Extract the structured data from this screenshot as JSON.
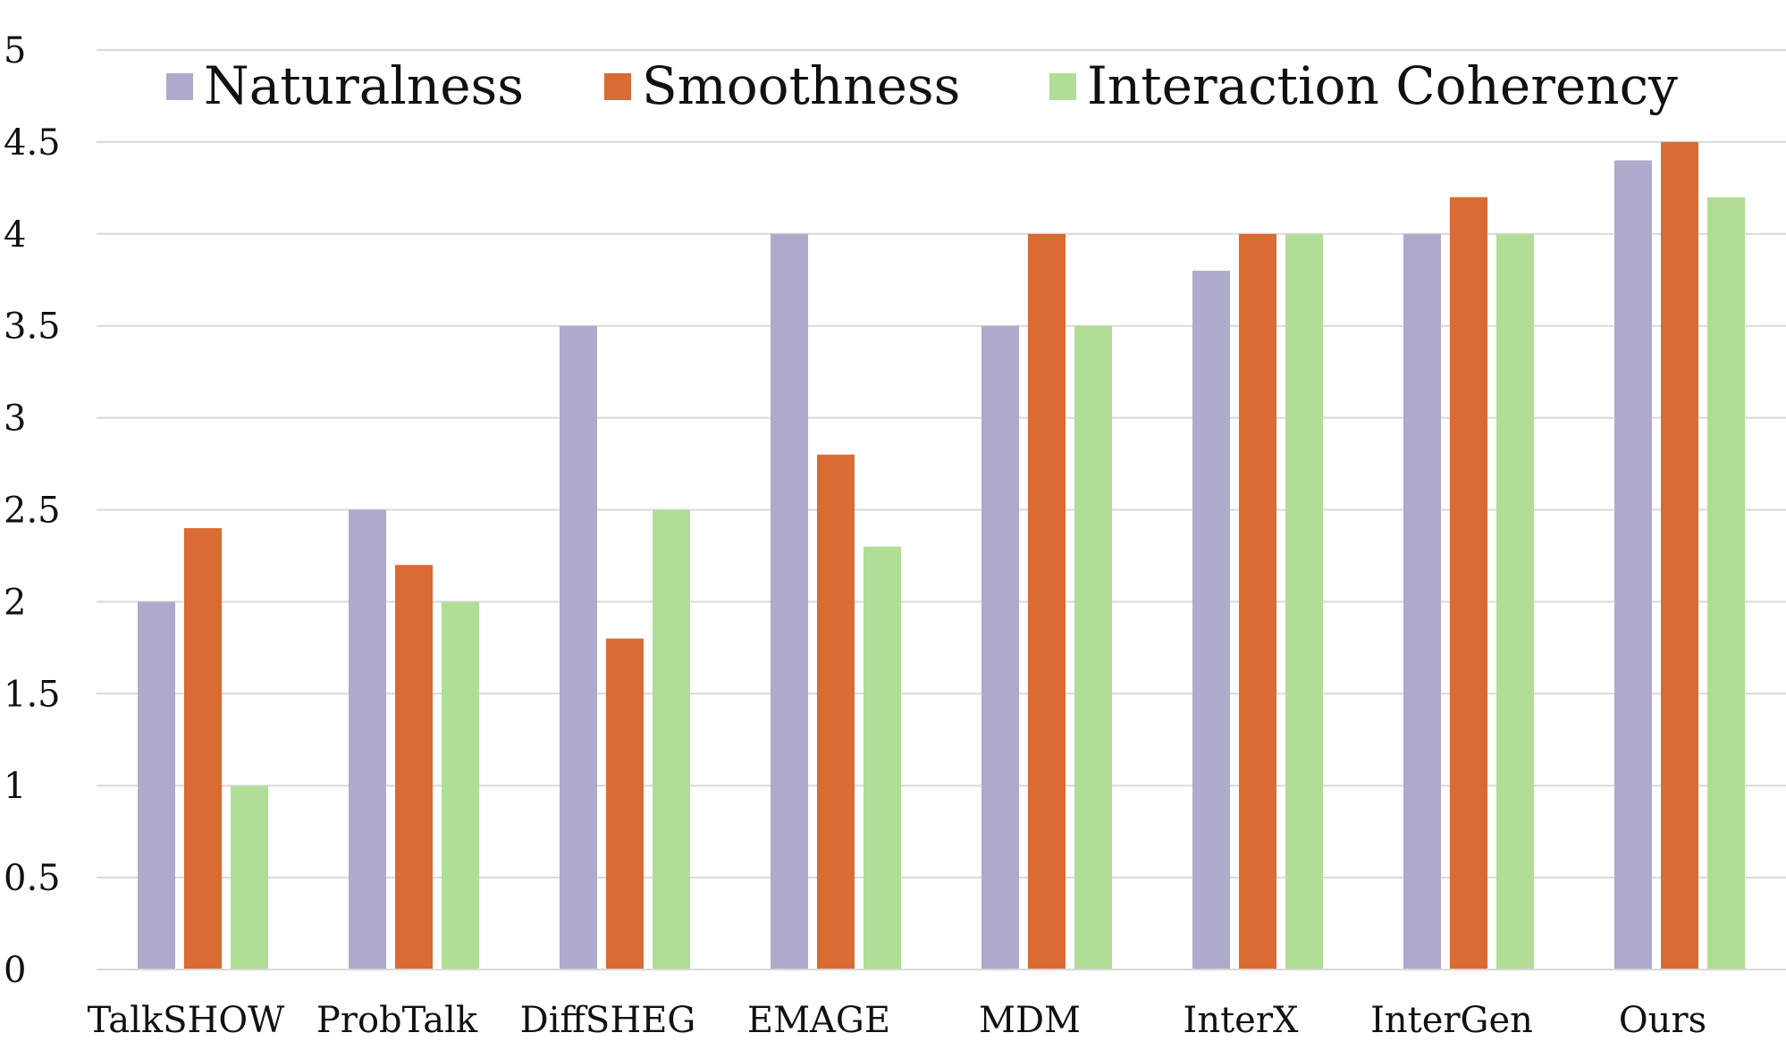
{
  "chart_data": {
    "type": "bar",
    "title": "",
    "xlabel": "",
    "ylabel": "",
    "ylim": [
      0,
      5
    ],
    "yticks": [
      0,
      0.5,
      1,
      1.5,
      2,
      2.5,
      3,
      3.5,
      4,
      4.5,
      5
    ],
    "ytick_labels": [
      "0",
      "0.5",
      "1",
      "1.5",
      "2",
      "2.5",
      "3",
      "3.5",
      "4",
      "4.5",
      "5"
    ],
    "grid": true,
    "legend_position": "top",
    "categories": [
      "TalkSHOW",
      "ProbTalk",
      "DiffSHEG",
      "EMAGE",
      "MDM",
      "InterX",
      "InterGen",
      "Ours"
    ],
    "series": [
      {
        "name": "Naturalness",
        "color": "#adabcb",
        "values": [
          2.0,
          2.5,
          3.5,
          4.0,
          3.5,
          3.8,
          4.0,
          4.4
        ]
      },
      {
        "name": "Smoothness",
        "color": "#d96b33",
        "values": [
          2.4,
          2.2,
          1.8,
          2.8,
          4.0,
          4.0,
          4.2,
          4.5
        ]
      },
      {
        "name": "Interaction Coherency",
        "color": "#b1de96",
        "values": [
          1.0,
          2.0,
          2.5,
          2.3,
          3.5,
          4.0,
          4.0,
          4.2
        ]
      }
    ]
  }
}
